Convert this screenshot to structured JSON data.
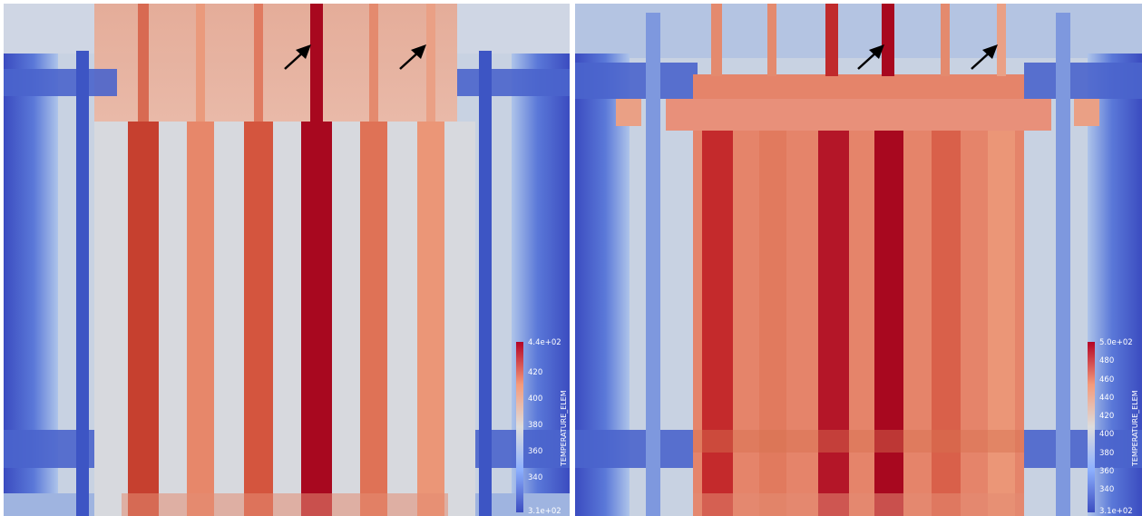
{
  "views": [
    {
      "id": "left",
      "colorbar": {
        "title": "TEMPERATURE_ELEM",
        "max_label": "4.4e+02",
        "min_label": "3.1e+02",
        "ticks": [
          "420",
          "400",
          "380",
          "360",
          "340"
        ],
        "colors": {
          "high": "#b40426",
          "mid": "#dddddd",
          "low": "#3b4cc0"
        }
      },
      "arrows": 2
    },
    {
      "id": "right",
      "colorbar": {
        "title": "TEMPERATURE_ELEM",
        "max_label": "5.0e+02",
        "min_label": "3.1e+02",
        "ticks": [
          "480",
          "460",
          "440",
          "420",
          "400",
          "380",
          "360",
          "340"
        ],
        "colors": {
          "high": "#b40426",
          "mid": "#dddddd",
          "low": "#3b4cc0"
        }
      },
      "arrows": 2
    }
  ]
}
